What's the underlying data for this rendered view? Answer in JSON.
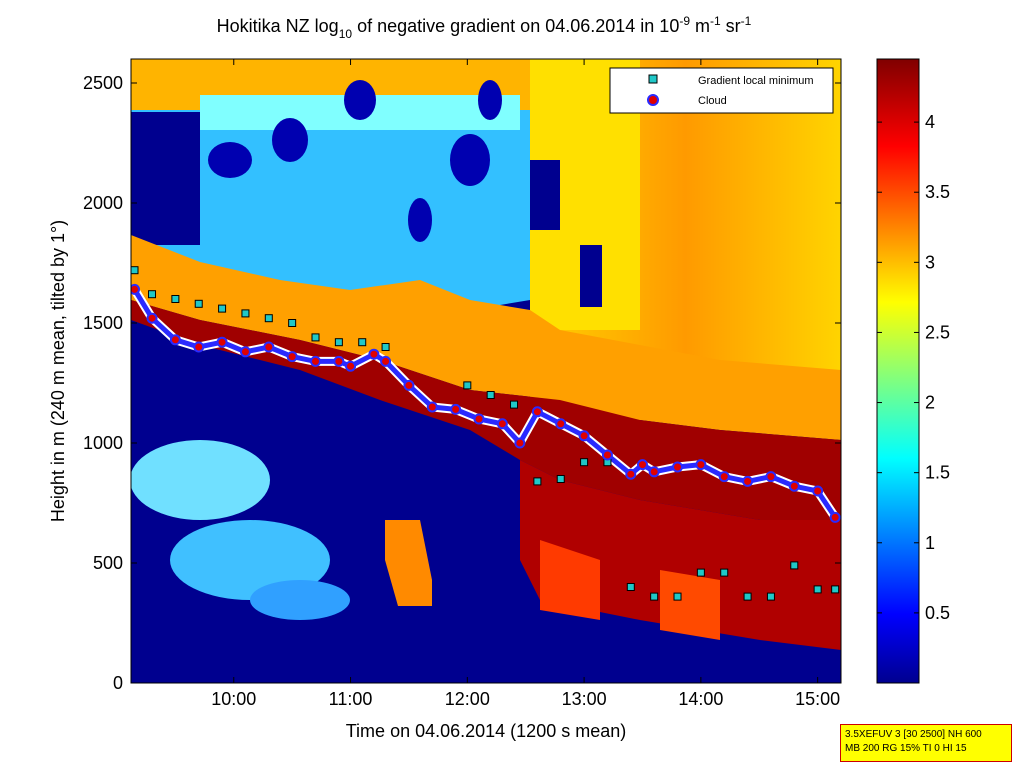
{
  "figure": {
    "title_main": "Hokitika NZ log",
    "title_sub": "10",
    "title_mid": " of negative gradient on 04.06.2014 in 10",
    "title_exp1": "-9",
    "title_unit1": " m",
    "title_exp2": "-1",
    "title_unit2": " sr",
    "title_exp3": "-1",
    "ylabel": "Height in m (240 m mean, tilted by 1°)",
    "xlabel": "Time on 04.06.2014 (1200 s mean)",
    "info_line1": "3.5XEFUV 3 [30 2500] NH 600",
    "info_line2": "MB 200 RG 15% TI 0 HI 15"
  },
  "chart_data": {
    "type": "heatmap",
    "title": "Hokitika NZ log10 of negative gradient on 04.06.2014 in 10^-9 m^-1 sr^-1",
    "xlabel": "Time on 04.06.2014 (1200 s mean)",
    "ylabel": "Height in m (240 m mean, tilted by 1°)",
    "xlim": [
      9.12,
      15.2
    ],
    "ylim": [
      0,
      2600
    ],
    "x_ticks": [
      "10:00",
      "11:00",
      "12:00",
      "13:00",
      "14:00",
      "15:00"
    ],
    "x_tick_values": [
      10,
      11,
      12,
      13,
      14,
      15
    ],
    "y_ticks": [
      0,
      500,
      1000,
      1500,
      2000,
      2500
    ],
    "colorbar": {
      "ticks": [
        0.5,
        1,
        1.5,
        2,
        2.5,
        3,
        3.5,
        4
      ],
      "range": [
        0,
        4.45
      ],
      "colormap": "jet"
    },
    "legend": {
      "placement": "top-right",
      "entries": [
        "Gradient local minimum",
        "Cloud"
      ]
    },
    "series": [
      {
        "name": "Cloud",
        "x": [
          9.15,
          9.3,
          9.5,
          9.7,
          9.9,
          10.1,
          10.3,
          10.5,
          10.7,
          10.9,
          11.0,
          11.2,
          11.3,
          11.5,
          11.7,
          11.9,
          12.1,
          12.3,
          12.45,
          12.6,
          12.8,
          13.0,
          13.2,
          13.4,
          13.5,
          13.6,
          13.8,
          14.0,
          14.2,
          14.4,
          14.6,
          14.8,
          15.0,
          15.15
        ],
        "y": [
          1640,
          1520,
          1430,
          1400,
          1420,
          1380,
          1400,
          1360,
          1340,
          1340,
          1320,
          1370,
          1340,
          1240,
          1150,
          1140,
          1100,
          1080,
          1000,
          1130,
          1080,
          1030,
          950,
          870,
          910,
          880,
          900,
          910,
          860,
          840,
          860,
          820,
          800,
          690
        ]
      },
      {
        "name": "Gradient local minimum",
        "x": [
          9.15,
          9.3,
          9.5,
          9.7,
          9.9,
          10.1,
          10.3,
          10.5,
          10.7,
          10.9,
          11.1,
          11.3,
          12.0,
          12.2,
          12.4,
          12.6,
          12.8,
          13.0,
          13.2,
          13.4,
          13.6,
          13.8,
          14.0,
          14.2,
          14.4,
          14.6,
          14.8,
          15.0,
          15.15
        ],
        "y": [
          1720,
          1620,
          1600,
          1580,
          1560,
          1540,
          1520,
          1500,
          1440,
          1420,
          1420,
          1400,
          1240,
          1200,
          1160,
          840,
          850,
          920,
          920,
          400,
          360,
          360,
          460,
          460,
          360,
          360,
          490,
          390,
          390
        ]
      }
    ]
  }
}
